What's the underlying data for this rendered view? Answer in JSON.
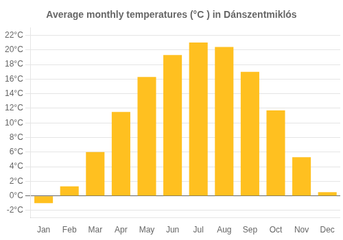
{
  "chart_data": {
    "type": "bar",
    "title": "Average monthly temperatures (°C ) in Dánszentmiklós",
    "categories": [
      "Jan",
      "Feb",
      "Mar",
      "Apr",
      "May",
      "Jun",
      "Jul",
      "Aug",
      "Sep",
      "Oct",
      "Nov",
      "Dec"
    ],
    "values": [
      -1.0,
      1.3,
      6.0,
      11.5,
      16.3,
      19.3,
      21.0,
      20.4,
      17.0,
      11.7,
      5.3,
      0.5
    ],
    "color": "#FFC020",
    "ylim": [
      -3,
      23
    ],
    "yticks": [
      {
        "value": -2,
        "label": "-2°C"
      },
      {
        "value": 0,
        "label": "0°C"
      },
      {
        "value": 2,
        "label": "2°C"
      },
      {
        "value": 4,
        "label": "4°C"
      },
      {
        "value": 6,
        "label": "6°C"
      },
      {
        "value": 8,
        "label": "8°C"
      },
      {
        "value": 10,
        "label": "10°C"
      },
      {
        "value": 12,
        "label": "12°C"
      },
      {
        "value": 14,
        "label": "14°C"
      },
      {
        "value": 16,
        "label": "16°C"
      },
      {
        "value": 18,
        "label": "18°C"
      },
      {
        "value": 20,
        "label": "20°C"
      },
      {
        "value": 22,
        "label": "22°C"
      }
    ],
    "grid": true
  }
}
